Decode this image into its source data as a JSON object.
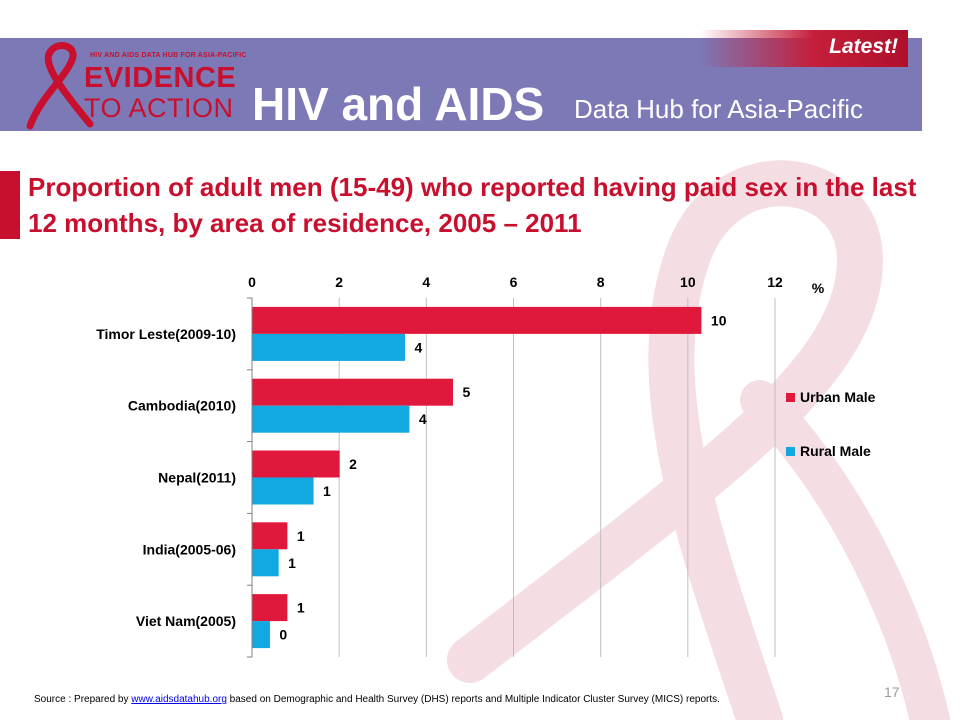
{
  "header": {
    "logo_small": "HIV AND AIDS DATA HUB FOR ASIA-PACIFIC",
    "logo_line1": "EVIDENCE",
    "logo_line2": "TO ACTION",
    "title": "HIV and AIDS",
    "subtitle": "Data Hub for Asia-Pacific",
    "badge": "Latest!"
  },
  "colors": {
    "header_bg": "#7d78b6",
    "accent": "#c8102e",
    "urban": "#e0193c",
    "rural": "#12a8e0"
  },
  "slide_title": "Proportion of adult men (15-49) who reported having paid sex in the last 12 months, by area of residence, 2005 – 2011",
  "chart_data": {
    "type": "bar",
    "orientation": "horizontal",
    "categories": [
      "Timor Leste(2009-10)",
      "Cambodia(2010)",
      "Nepal(2011)",
      "India(2005-06)",
      "Viet Nam(2005)"
    ],
    "series": [
      {
        "name": "Urban Male",
        "values": [
          10.3,
          4.6,
          2.0,
          0.8,
          0.8
        ],
        "labels": [
          "10",
          "5",
          "2",
          "1",
          "1"
        ],
        "color": "#e0193c"
      },
      {
        "name": "Rural Male",
        "values": [
          3.5,
          3.6,
          1.4,
          0.6,
          0.4
        ],
        "labels": [
          "4",
          "4",
          "1",
          "1",
          "0"
        ],
        "color": "#12a8e0"
      }
    ],
    "xlim": [
      0,
      12
    ],
    "ticks": [
      "0",
      "2",
      "4",
      "6",
      "8",
      "10",
      "12"
    ],
    "xlabel": "%",
    "axis_position": "top",
    "grid": true,
    "legend": "right"
  },
  "footer": {
    "source_prefix": "Source : Prepared by ",
    "source_link": "www.aidsdatahub.org",
    "source_suffix": " based on Demographic and Health Survey (DHS) reports and Multiple Indicator Cluster Survey (MICS) reports.",
    "page": "17"
  }
}
